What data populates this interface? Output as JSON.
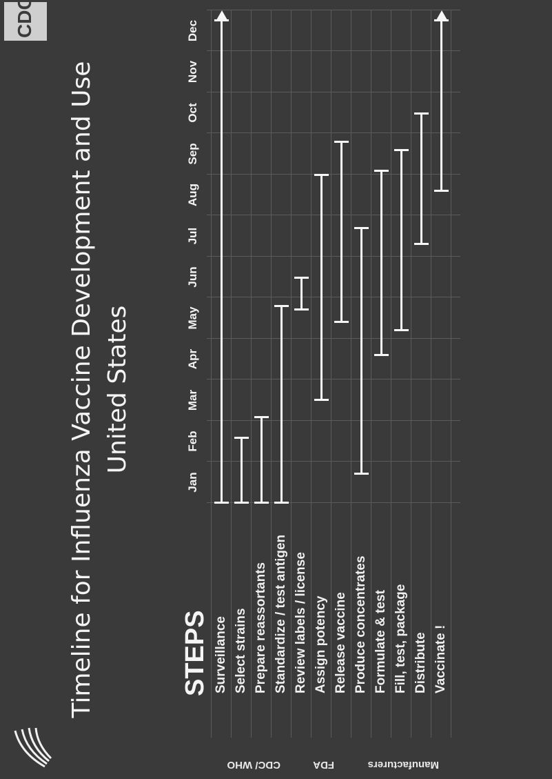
{
  "title_line1": "Timeline for Influenza Vaccine Development and Use",
  "title_line2": "United States",
  "steps_heading": "STEPS",
  "months": [
    "Jan",
    "Feb",
    "Mar",
    "Apr",
    "May",
    "Jun",
    "Jul",
    "Aug",
    "Sep",
    "Oct",
    "Nov",
    "Dec"
  ],
  "groups": [
    {
      "label": "CDC/ WHO"
    },
    {
      "label": "FDA"
    },
    {
      "label": "Manufacturers"
    }
  ],
  "steps": [
    "Surveillance",
    "Select strains",
    "Prepare reassortants",
    "Standardize / test antigen",
    "Review labels  /  license",
    "Assign potency",
    "Release vaccine",
    "Produce concentrates",
    "Formulate & test",
    "Fill, test, package",
    "Distribute",
    "Vaccinate !"
  ],
  "chart_data": {
    "type": "gantt",
    "title": "Timeline for Influenza Vaccine Development and Use United States",
    "x_axis": [
      "Jan",
      "Feb",
      "Mar",
      "Apr",
      "May",
      "Jun",
      "Jul",
      "Aug",
      "Sep",
      "Oct",
      "Nov",
      "Dec"
    ],
    "tasks": [
      {
        "name": "Surveillance",
        "start_month": 1.0,
        "end_month": 13.0,
        "arrow": "right"
      },
      {
        "name": "Select strains",
        "start_month": 1.0,
        "end_month": 2.6
      },
      {
        "name": "Prepare reassortants",
        "start_month": 1.0,
        "end_month": 3.1
      },
      {
        "name": "Standardize / test antigen",
        "start_month": 1.0,
        "end_month": 5.8
      },
      {
        "name": "Review labels  /  license",
        "start_month": 5.7,
        "end_month": 6.5
      },
      {
        "name": "Assign potency",
        "start_month": 3.5,
        "end_month": 9.0
      },
      {
        "name": "Release vaccine",
        "start_month": 5.4,
        "end_month": 9.8
      },
      {
        "name": "Produce concentrates",
        "start_month": 1.7,
        "end_month": 7.7
      },
      {
        "name": "Formulate & test",
        "start_month": 4.6,
        "end_month": 9.1
      },
      {
        "name": "Fill, test, package",
        "start_month": 5.2,
        "end_month": 9.6
      },
      {
        "name": "Distribute",
        "start_month": 7.3,
        "end_month": 10.5
      },
      {
        "name": "Vaccinate !",
        "start_month": 8.6,
        "end_month": 13.0,
        "arrow": "right"
      }
    ]
  },
  "logos": {
    "left_logo": "hhs-eagle-logo",
    "right_logo_text": "CDC"
  },
  "colors": {
    "background": "#3a3a3a",
    "foreground": "#f7f7f7"
  }
}
